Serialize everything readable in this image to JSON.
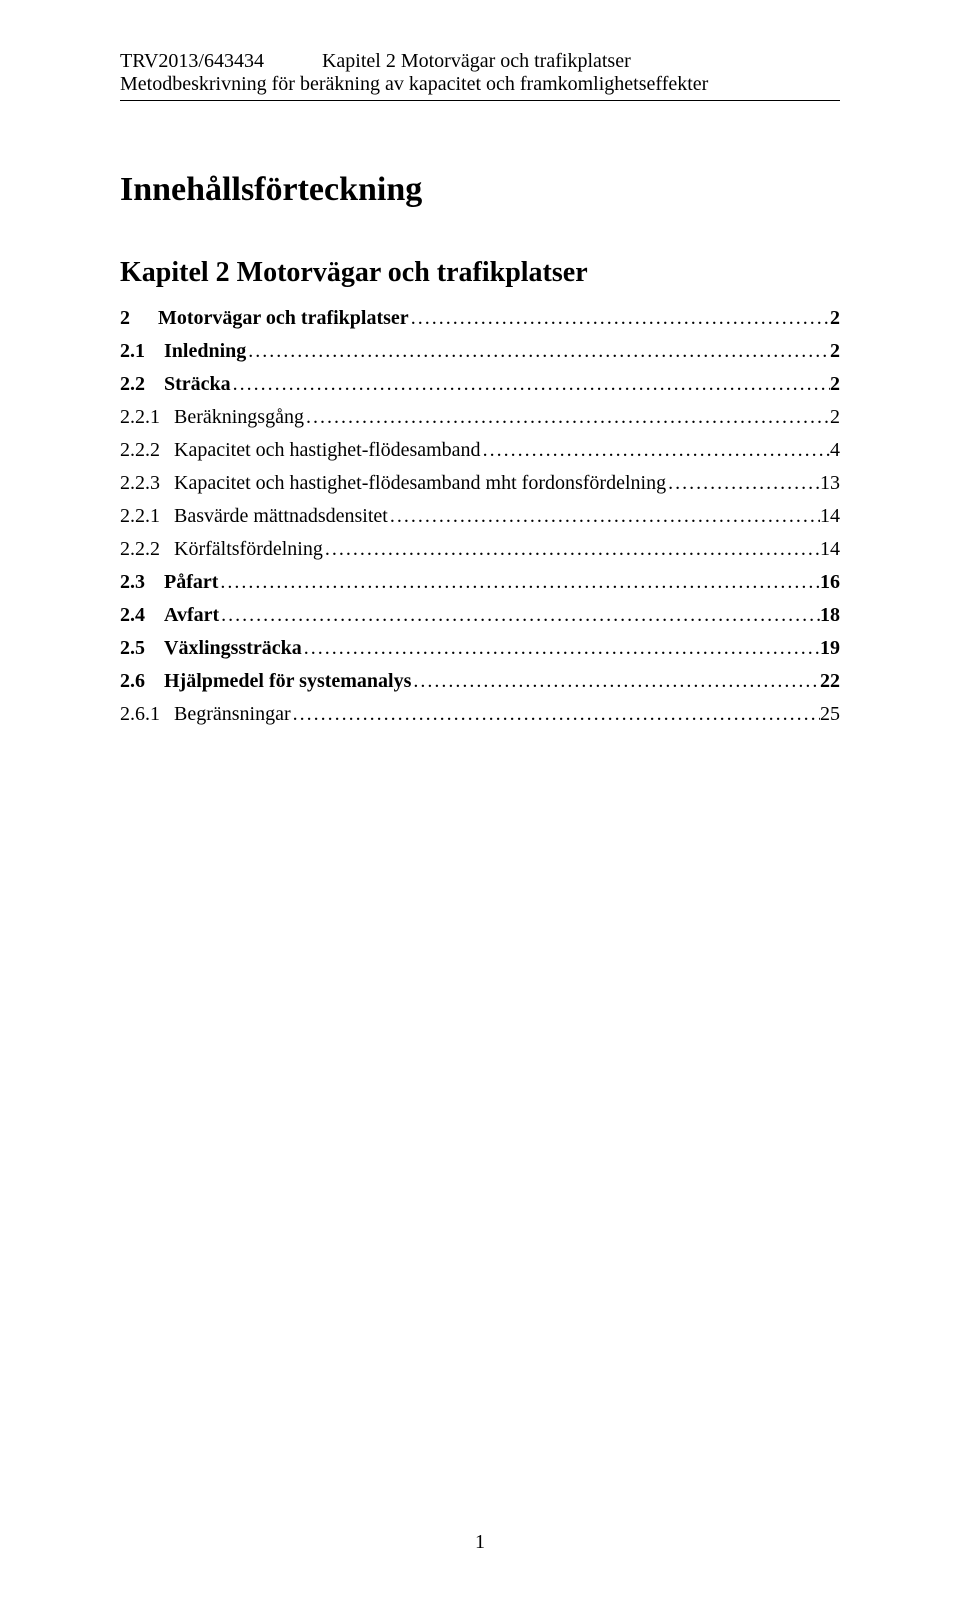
{
  "header": {
    "doc_id": "TRV2013/643434",
    "chapter_title": "Kapitel 2 Motorvägar och trafikplatser",
    "subtitle": "Metodbeskrivning för beräkning av kapacitet och framkomlighetseffekter"
  },
  "toc": {
    "title": "Innehållsförteckning",
    "chapter": "Kapitel 2 Motorvägar och trafikplatser",
    "entries": [
      {
        "level": 1,
        "num": "2",
        "text": "Motorvägar och trafikplatser",
        "page": "2"
      },
      {
        "level": 2,
        "num": "2.1",
        "text": "Inledning",
        "page": "2"
      },
      {
        "level": 2,
        "num": "2.2",
        "text": "Sträcka",
        "page": "2"
      },
      {
        "level": 3,
        "num": "2.2.1",
        "text": "Beräkningsgång",
        "page": "2"
      },
      {
        "level": 3,
        "num": "2.2.2",
        "text": "Kapacitet och hastighet-flödesamband",
        "page": "4"
      },
      {
        "level": 3,
        "num": "2.2.3",
        "text": "Kapacitet och hastighet-flödesamband mht fordonsfördelning",
        "page": "13"
      },
      {
        "level": 3,
        "num": "2.2.1",
        "text": "Basvärde mättnadsdensitet",
        "page": "14"
      },
      {
        "level": 3,
        "num": "2.2.2",
        "text": "Körfältsfördelning",
        "page": "14"
      },
      {
        "level": 2,
        "num": "2.3",
        "text": "Påfart",
        "page": "16"
      },
      {
        "level": 2,
        "num": "2.4",
        "text": "Avfart",
        "page": "18"
      },
      {
        "level": 2,
        "num": "2.5",
        "text": "Växlingssträcka",
        "page": "19"
      },
      {
        "level": 2,
        "num": "2.6",
        "text": "Hjälpmedel för systemanalys",
        "page": "22"
      },
      {
        "level": 3,
        "num": "2.6.1",
        "text": "Begränsningar",
        "page": "25"
      }
    ],
    "dot_leader": "...................................................................................................................."
  },
  "footer": {
    "page_number": "1"
  }
}
